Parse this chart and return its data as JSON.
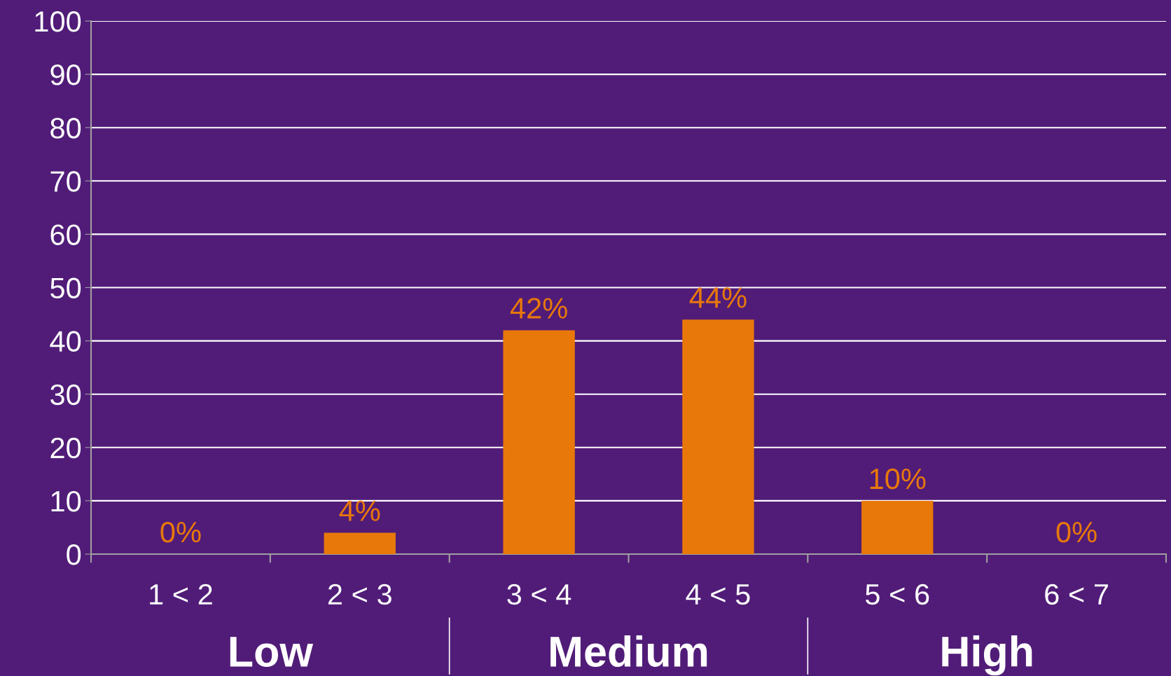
{
  "chart_data": {
    "type": "bar",
    "categories": [
      "1 < 2",
      "2 < 3",
      "3 < 4",
      "4 < 5",
      "5 < 6",
      "6 < 7"
    ],
    "values": [
      0,
      4,
      42,
      44,
      10,
      0
    ],
    "value_labels": [
      "0%",
      "4%",
      "42%",
      "44%",
      "10%",
      "0%"
    ],
    "color": "#e8780a",
    "ylim": [
      0,
      100
    ],
    "yticks": [
      0,
      10,
      20,
      30,
      40,
      50,
      60,
      70,
      80,
      90,
      100
    ],
    "grid": "y",
    "legend": false,
    "annotations": [
      "Low",
      "Medium",
      "High"
    ]
  }
}
